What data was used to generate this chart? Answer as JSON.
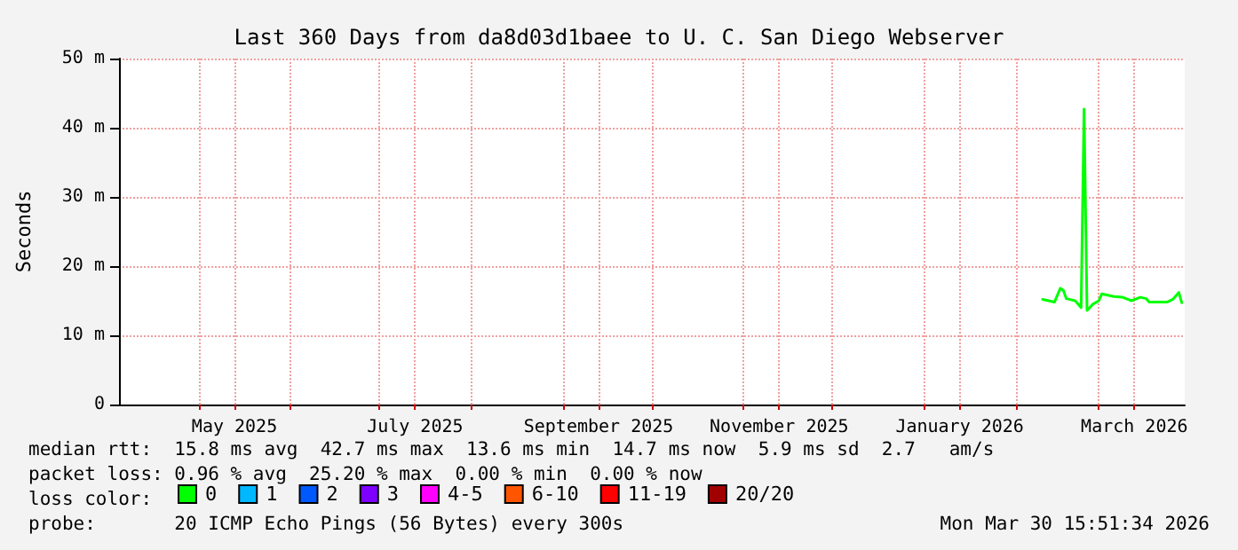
{
  "chart_data": {
    "type": "line",
    "title": "Last 360 Days from da8d03d1baee to U. C. San Diego Webserver",
    "ylabel": "Seconds",
    "xlim": [
      "2025-04-04",
      "2026-03-30"
    ],
    "xticks": [
      {
        "value": "2025-05-01",
        "label": null
      },
      {
        "value": "2025-05-13",
        "label": "May 2025"
      },
      {
        "value": "2025-06-01",
        "label": null
      },
      {
        "value": "2025-07-01",
        "label": null
      },
      {
        "value": "2025-07-13",
        "label": "July 2025"
      },
      {
        "value": "2025-08-01",
        "label": null
      },
      {
        "value": "2025-09-01",
        "label": null
      },
      {
        "value": "2025-09-13",
        "label": "September 2025"
      },
      {
        "value": "2025-10-01",
        "label": null
      },
      {
        "value": "2025-11-01",
        "label": null
      },
      {
        "value": "2025-11-13",
        "label": "November 2025"
      },
      {
        "value": "2025-12-01",
        "label": null
      },
      {
        "value": "2026-01-01",
        "label": null
      },
      {
        "value": "2026-01-13",
        "label": "January 2026"
      },
      {
        "value": "2026-02-01",
        "label": null
      },
      {
        "value": "2026-03-01",
        "label": null
      },
      {
        "value": "2026-03-13",
        "label": "March 2026"
      }
    ],
    "ylim": [
      0,
      50
    ],
    "yticks": [
      0,
      {
        "value": 10,
        "label": "10 m"
      },
      {
        "value": 20,
        "label": "20 m"
      },
      {
        "value": 30,
        "label": "30 m"
      },
      {
        "value": 40,
        "label": "40 m"
      },
      {
        "value": 50,
        "label": "50 m"
      }
    ],
    "grid": true,
    "legend": "bottom",
    "marker": "none",
    "line_style": "solid",
    "series": [
      {
        "name": "0",
        "color": "#00ff00",
        "x": [
          "2026-02-10",
          "2026-02-14",
          "2026-02-16",
          "2026-02-17",
          "2026-02-18",
          "2026-02-21",
          "2026-02-23",
          "2026-02-24",
          "2026-02-25",
          "2026-02-27",
          "2026-03-01",
          "2026-03-02",
          "2026-03-06",
          "2026-03-09",
          "2026-03-12",
          "2026-03-15",
          "2026-03-17",
          "2026-03-18",
          "2026-03-24",
          "2026-03-26",
          "2026-03-28",
          "2026-03-29"
        ],
        "values": [
          15.2,
          14.8,
          16.8,
          16.5,
          15.3,
          15.0,
          14.0,
          42.7,
          13.6,
          14.5,
          15.0,
          16.0,
          15.6,
          15.5,
          15.0,
          15.5,
          15.3,
          14.8,
          14.8,
          15.2,
          16.2,
          14.7
        ]
      },
      {
        "name": "1",
        "color": "#00b8ff",
        "values": [
          null
        ]
      },
      {
        "name": "2",
        "color": "#0059ff",
        "values": [
          null
        ]
      },
      {
        "name": "3",
        "color": "#7e00ff",
        "values": [
          null
        ]
      },
      {
        "name": "4-5",
        "color": "#ff00ff",
        "values": [
          null
        ]
      },
      {
        "name": "6-10",
        "color": "#ff5500",
        "values": [
          null
        ]
      },
      {
        "name": "11-19",
        "color": "#ff0000",
        "values": [
          null
        ]
      },
      {
        "name": "20/20",
        "color": "#a10000",
        "values": [
          null
        ]
      }
    ],
    "annotations": [
      "median rtt:  15.8 ms avg  42.7 ms max  13.6 ms min  14.7 ms now  5.9 ms sd  2.7   am/s",
      "packet loss: 0.96 % avg  25.20 % max  0.00 % min  0.00 % now",
      "loss color:",
      "probe:       20 ICMP Echo Pings (56 Bytes) every 300s",
      "Mon Mar 30 15:51:34 2026"
    ]
  }
}
